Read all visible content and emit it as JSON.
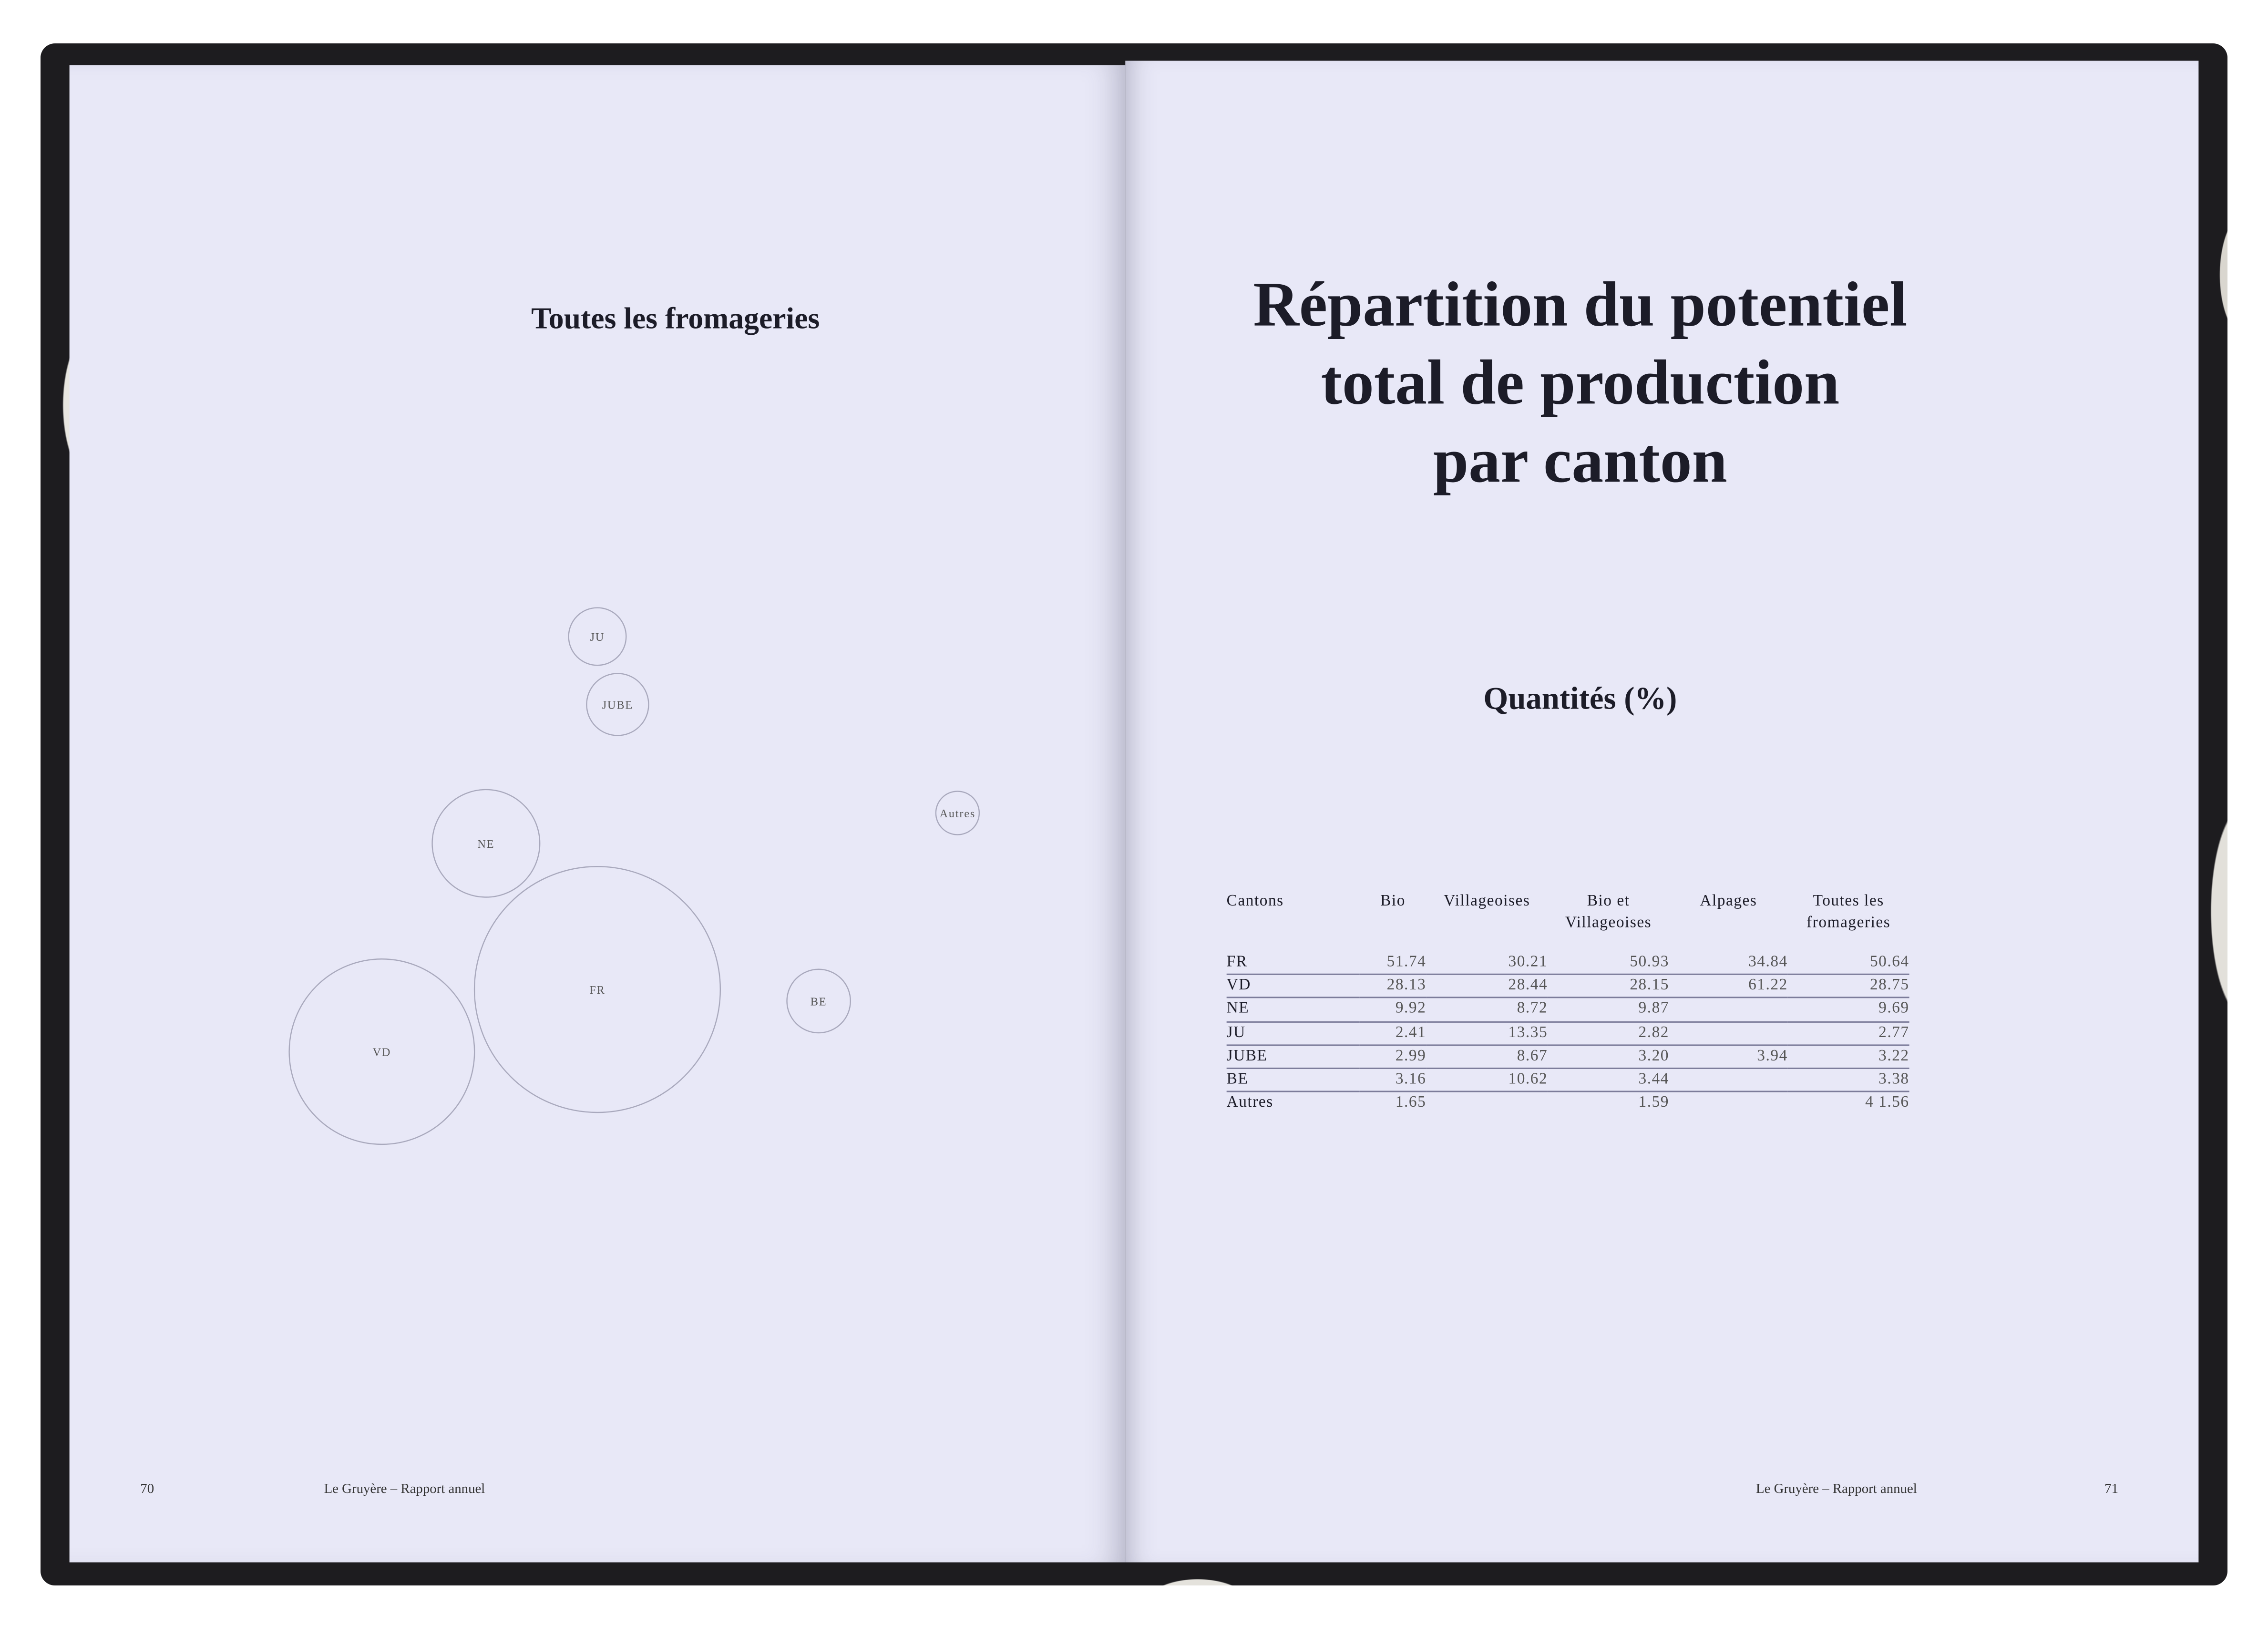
{
  "left_page": {
    "title": "Toutes les fromageries",
    "page_number": "70",
    "footer": "Le Gruyère – Rapport annuel"
  },
  "right_page": {
    "title_lines": [
      "Répartition du potentiel",
      "total de production",
      "par canton"
    ],
    "subtitle": "Quantités (%)",
    "page_number": "71",
    "footer": "Le Gruyère –  Rapport annuel"
  },
  "table": {
    "headers": [
      "Cantons",
      "Bio",
      "Villageoises",
      "Bio et Villageoises",
      "Alpages",
      "Toutes les fromageries"
    ],
    "rows": [
      [
        "FR",
        "51.74",
        "30.21",
        "50.93",
        "34.84",
        "50.64"
      ],
      [
        "VD",
        "28.13",
        "28.44",
        "28.15",
        "61.22",
        "28.75"
      ],
      [
        "NE",
        "9.92",
        "8.72",
        "9.87",
        "",
        "9.69"
      ],
      [
        "JU",
        "2.41",
        "13.35",
        "2.82",
        "",
        "2.77"
      ],
      [
        "JUBE",
        "2.99",
        "8.67",
        "3.20",
        "3.94",
        "3.22"
      ],
      [
        "BE",
        "3.16",
        "10.62",
        "3.44",
        "",
        "3.38"
      ],
      [
        "Autres",
        "1.65",
        "",
        "1.59",
        "",
        "4 1.56"
      ]
    ]
  },
  "chart_data": {
    "type": "bubble",
    "title": "Toutes les fromageries",
    "series": [
      {
        "label": "FR",
        "value": 50.64
      },
      {
        "label": "VD",
        "value": 28.75
      },
      {
        "label": "NE",
        "value": 9.69
      },
      {
        "label": "JU",
        "value": 2.77
      },
      {
        "label": "JUBE",
        "value": 3.22
      },
      {
        "label": "BE",
        "value": 3.38
      },
      {
        "label": "Autres",
        "value": 1.56
      }
    ],
    "stroke_color": "#a9a9bd"
  }
}
